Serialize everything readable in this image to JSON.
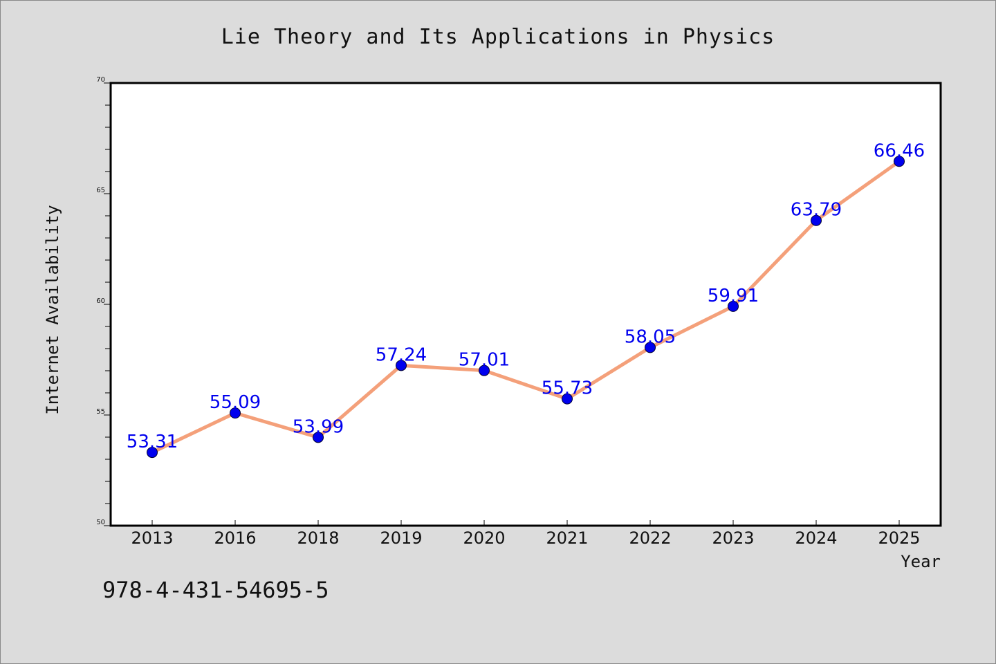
{
  "chart_data": {
    "type": "line",
    "title": "Lie Theory and Its Applications in Physics",
    "xlabel": "Year",
    "ylabel": "Internet Availability",
    "categories": [
      "2013",
      "2016",
      "2018",
      "2019",
      "2020",
      "2021",
      "2022",
      "2023",
      "2024",
      "2025"
    ],
    "series": [
      {
        "values": [
          53.31,
          55.09,
          53.99,
          57.24,
          57.01,
          55.73,
          58.05,
          59.91,
          63.79,
          66.46
        ],
        "data_labels": [
          "53.31",
          "55.09",
          "53.99",
          "57.24",
          "57.01",
          "55.73",
          "58.05",
          "59.91",
          "63.79",
          "66.46"
        ]
      }
    ],
    "ylim": [
      50,
      70
    ],
    "y_ticks": [
      "50",
      "55",
      "60",
      "65",
      "70"
    ],
    "y_tick_values": [
      50,
      55,
      60,
      65,
      70
    ],
    "y_minor_step": 1,
    "grid": false,
    "legend": "none",
    "colors": {
      "line": "#f4a07a",
      "marker_fill": "#0000ee",
      "marker_edge": "#000033",
      "data_label": "#0000ee",
      "plot_background": "#ffffff",
      "figure_background": "#dcdcdc"
    }
  },
  "footer": {
    "isbn": "978-4-431-54695-5"
  }
}
